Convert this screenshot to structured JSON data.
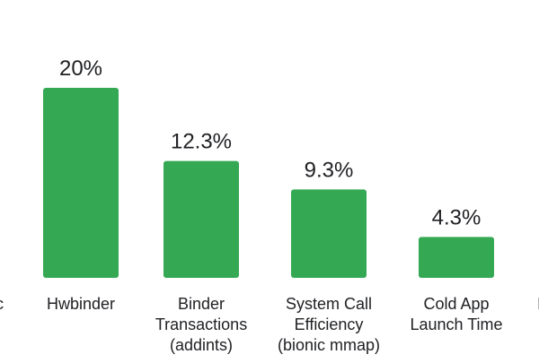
{
  "chart_data": {
    "type": "bar",
    "title": "",
    "xlabel": "",
    "ylabel": "",
    "categories": [
      "Hwbinder",
      "Binder Transactions (addints)",
      "System Call Efficiency (bionic mmap)",
      "Cold App Launch Time"
    ],
    "category_lines": [
      [
        "Hwbinder"
      ],
      [
        "Binder",
        "Transactions",
        "(addints)"
      ],
      [
        "System Call",
        "Efficiency",
        "(bionic mmap)"
      ],
      [
        "Cold App",
        "Launch Time"
      ]
    ],
    "values": [
      20,
      12.3,
      9.3,
      4.3
    ],
    "value_labels": [
      "20%",
      "12.3%",
      "9.3%",
      "4.3%"
    ],
    "partial_left_label": "c",
    "partial_right_label": "I",
    "ylim": [
      0,
      20
    ],
    "grid": false,
    "legend": "none",
    "bar_color": "#34a853",
    "text_color": "#202124"
  }
}
